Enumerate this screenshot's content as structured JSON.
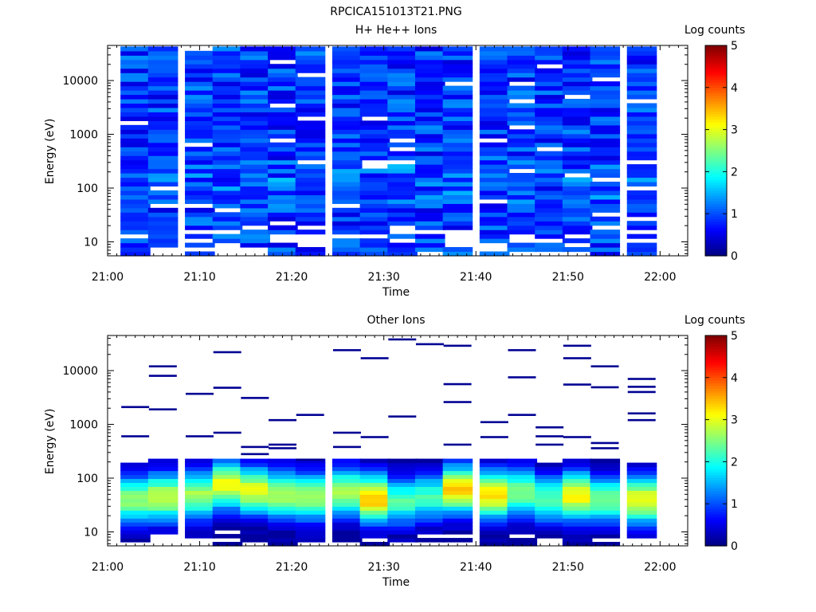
{
  "figure_title": "RPCICA151013T21.PNG",
  "colors": {
    "colormap": [
      "#00007f",
      "#0000ff",
      "#007fff",
      "#00ffff",
      "#7fff7f",
      "#ffff00",
      "#ff7f00",
      "#ff0000",
      "#7f0000"
    ],
    "axis": "#000000",
    "background": "#ffffff"
  },
  "chart_data": [
    {
      "type": "heatmap",
      "title": "H+ He++ Ions",
      "xlabel": "Time",
      "ylabel": "Energy (eV)",
      "yscale": "log",
      "xlim": [
        "21:00",
        "22:03"
      ],
      "ylim": [
        5.5,
        45000
      ],
      "xticks": [
        "21:00",
        "21:10",
        "21:20",
        "21:30",
        "21:40",
        "21:50",
        "22:00"
      ],
      "yticks": [
        "10",
        "100",
        "1000",
        "10000"
      ],
      "colorbar": {
        "label": "Log counts",
        "min": 0,
        "max": 5,
        "ticks": [
          "0",
          "1",
          "2",
          "3",
          "4",
          "5"
        ]
      },
      "time_bins": [
        "21:03",
        "21:06",
        "21:10",
        "21:13",
        "21:16",
        "21:19",
        "21:22",
        "21:26",
        "21:29",
        "21:32",
        "21:35",
        "21:38",
        "21:42",
        "21:45",
        "21:48",
        "21:51",
        "21:54",
        "21:58"
      ],
      "energy_range_ev": [
        5.5,
        43000
      ],
      "typical_log_counts": 0.9,
      "empty_energy_ev": [
        [],
        [
          2000
        ],
        [],
        [
          17000
        ],
        [],
        [],
        [],
        [],
        [
          16000
        ],
        [],
        [],
        [],
        [],
        [],
        [],
        [],
        [],
        []
      ]
    },
    {
      "type": "heatmap",
      "title": "Other Ions",
      "xlabel": "Time",
      "ylabel": "Energy (eV)",
      "yscale": "log",
      "xlim": [
        "21:00",
        "22:03"
      ],
      "ylim": [
        5.5,
        45000
      ],
      "xticks": [
        "21:00",
        "21:10",
        "21:20",
        "21:30",
        "21:40",
        "21:50",
        "22:00"
      ],
      "yticks": [
        "10",
        "100",
        "1000",
        "10000"
      ],
      "colorbar": {
        "label": "Log counts",
        "min": 0,
        "max": 5,
        "ticks": [
          "0",
          "1",
          "2",
          "3",
          "4",
          "5"
        ]
      },
      "time_bins": [
        "21:03",
        "21:06",
        "21:10",
        "21:13",
        "21:16",
        "21:19",
        "21:22",
        "21:26",
        "21:29",
        "21:32",
        "21:35",
        "21:38",
        "21:42",
        "21:45",
        "21:48",
        "21:51",
        "21:54",
        "21:58"
      ],
      "dense_band_ev": [
        5.5,
        230
      ],
      "peak_log_counts": [
        2.5,
        2.8,
        2.6,
        3.0,
        2.9,
        2.7,
        2.6,
        2.7,
        3.4,
        2.2,
        2.1,
        3.3,
        3.2,
        2.5,
        2.2,
        3.1,
        2.4,
        3.0
      ],
      "peak_energy_ev": [
        40,
        45,
        50,
        75,
        60,
        50,
        45,
        55,
        42,
        38,
        45,
        62,
        50,
        55,
        42,
        48,
        40,
        40
      ],
      "sparse_lines_ev": [
        [
          2100,
          600
        ],
        [
          12000,
          8000,
          1900
        ],
        [
          3700,
          600
        ],
        [
          22000,
          4800,
          700
        ],
        [
          3100,
          380,
          280
        ],
        [
          1200,
          420,
          360
        ],
        [
          1500,
          220
        ],
        [
          24000,
          700,
          380
        ],
        [
          17000,
          580
        ],
        [
          38000,
          1400
        ],
        [
          31000
        ],
        [
          29000,
          5600,
          2600,
          420
        ],
        [
          1100,
          580
        ],
        [
          24000,
          7500,
          1500
        ],
        [
          880,
          600,
          420
        ],
        [
          29000,
          17000,
          5500,
          580
        ],
        [
          12000,
          4900,
          450,
          360
        ],
        [
          7000,
          5000,
          4000,
          1600,
          1200
        ]
      ]
    }
  ]
}
